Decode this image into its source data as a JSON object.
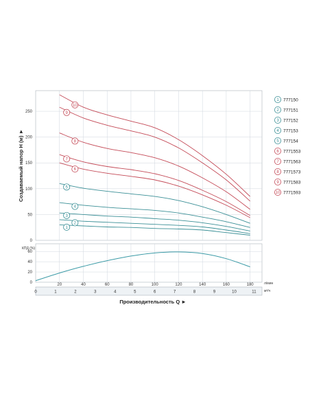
{
  "chart_data": [
    {
      "type": "line",
      "ylabel": "Создаваемый напор H (м) ►",
      "ylim": [
        0,
        290
      ],
      "y_ticks": [
        "0",
        "50",
        "100",
        "150",
        "200",
        "250"
      ],
      "grid": true,
      "legend": "right",
      "series": [
        {
          "badge": "1",
          "name": "777150",
          "color": "#3a8f96",
          "x": [
            20,
            40,
            60,
            80,
            100,
            120,
            140,
            160,
            180
          ],
          "y": [
            30,
            28,
            26,
            25,
            23,
            22,
            20,
            15,
            10
          ]
        },
        {
          "badge": "2",
          "name": "777151",
          "color": "#3a8f96",
          "x": [
            20,
            40,
            60,
            80,
            100,
            120,
            140,
            160,
            180
          ],
          "y": [
            40,
            37,
            35,
            33,
            31,
            29,
            26,
            20,
            13
          ]
        },
        {
          "badge": "3",
          "name": "777152",
          "color": "#3a8f96",
          "x": [
            20,
            40,
            60,
            80,
            100,
            120,
            140,
            160,
            180
          ],
          "y": [
            53,
            50,
            47,
            45,
            42,
            39,
            34,
            27,
            18
          ]
        },
        {
          "badge": "4",
          "name": "777153",
          "color": "#3a8f96",
          "x": [
            20,
            40,
            60,
            80,
            100,
            120,
            140,
            160,
            180
          ],
          "y": [
            73,
            68,
            64,
            61,
            58,
            53,
            45,
            36,
            25
          ]
        },
        {
          "badge": "5",
          "name": "777154",
          "color": "#3a8f96",
          "x": [
            20,
            40,
            60,
            80,
            100,
            120,
            140,
            160,
            180
          ],
          "y": [
            110,
            101,
            95,
            90,
            85,
            77,
            65,
            50,
            33
          ]
        },
        {
          "badge": "6",
          "name": "7771553",
          "color": "#c44a57",
          "x": [
            20,
            40,
            60,
            80,
            100,
            120,
            140,
            160,
            180
          ],
          "y": [
            150,
            138,
            130,
            124,
            117,
            105,
            88,
            68,
            44
          ]
        },
        {
          "badge": "7",
          "name": "7771563",
          "color": "#c44a57",
          "x": [
            20,
            40,
            60,
            80,
            100,
            120,
            140,
            160,
            180
          ],
          "y": [
            166,
            152,
            143,
            137,
            129,
            116,
            97,
            75,
            48
          ]
        },
        {
          "badge": "8",
          "name": "7771573",
          "color": "#c44a57",
          "x": [
            20,
            40,
            60,
            80,
            100,
            120,
            140,
            160,
            180
          ],
          "y": [
            208,
            190,
            178,
            170,
            160,
            144,
            121,
            94,
            60
          ]
        },
        {
          "badge": "9",
          "name": "7771583",
          "color": "#c44a57",
          "x": [
            20,
            40,
            60,
            80,
            100,
            120,
            140,
            160,
            180
          ],
          "y": [
            258,
            237,
            223,
            212,
            200,
            179,
            150,
            117,
            76
          ]
        },
        {
          "badge": "10",
          "name": "7771593",
          "color": "#c44a57",
          "x": [
            20,
            40,
            60,
            80,
            100,
            120,
            140,
            160,
            180
          ],
          "y": [
            282,
            258,
            243,
            231,
            218,
            195,
            164,
            128,
            85
          ]
        }
      ]
    },
    {
      "type": "line",
      "ylabel": "КПД (%)",
      "ylim": [
        0,
        75
      ],
      "y_ticks": [
        "0",
        "20",
        "40",
        "60"
      ],
      "grid": true,
      "series": [
        {
          "color": "#3a9aa6",
          "x": [
            0,
            20,
            40,
            60,
            80,
            100,
            120,
            140,
            160,
            180
          ],
          "y": [
            3,
            18,
            31,
            42,
            51,
            57,
            59,
            56,
            46,
            30
          ]
        }
      ]
    }
  ],
  "x_axis": {
    "title": "Производительность Q ►",
    "top_unit": "л/мин",
    "top_ticks": [
      "20",
      "40",
      "60",
      "80",
      "100",
      "120",
      "140",
      "160",
      "180"
    ],
    "bottom_unit": "м³/ч",
    "bottom_ticks": [
      "0",
      "1",
      "2",
      "3",
      "4",
      "5",
      "6",
      "7",
      "8",
      "9",
      "10",
      "11"
    ]
  }
}
